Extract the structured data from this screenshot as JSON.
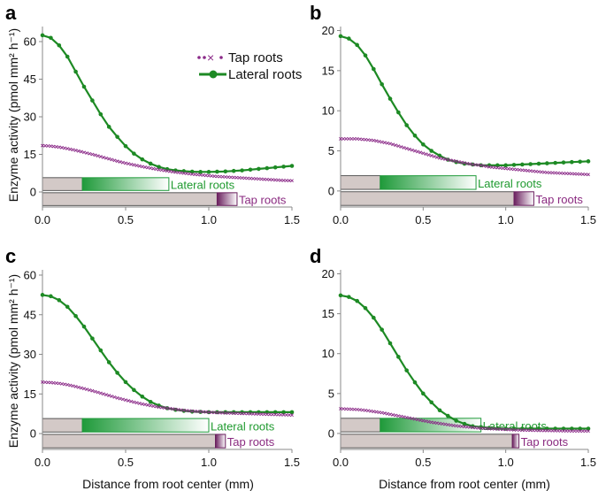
{
  "figure": {
    "ylabel": "Enzyme activity (pmol mm² h⁻¹)",
    "xlabel": "Distance from root center (mm)"
  },
  "legend": {
    "tap_label": "Tap roots",
    "lateral_label": "Lateral roots"
  },
  "colors": {
    "tap": "#8b2a88",
    "lateral": "#1d8a24",
    "gray_bar": "#d3c9c7",
    "lateral_dark": "#1f9a3a",
    "tap_dark": "#6a1f5e"
  },
  "chart_data": [
    {
      "panel": "a",
      "type": "line",
      "x": [
        0,
        0.05,
        0.1,
        0.15,
        0.2,
        0.25,
        0.3,
        0.35,
        0.4,
        0.45,
        0.5,
        0.55,
        0.6,
        0.65,
        0.7,
        0.75,
        0.8,
        0.85,
        0.9,
        0.95,
        1.0,
        1.05,
        1.1,
        1.15,
        1.2,
        1.25,
        1.3,
        1.35,
        1.4,
        1.45,
        1.5
      ],
      "series": [
        {
          "name": "Lateral roots",
          "values": [
            62.5,
            61.5,
            58.5,
            54,
            48,
            42,
            36.5,
            31,
            26,
            22,
            18.3,
            15.3,
            13,
            11.3,
            10,
            9.1,
            8.6,
            8.3,
            8.1,
            8.0,
            8.0,
            8.1,
            8.2,
            8.4,
            8.6,
            8.9,
            9.2,
            9.5,
            9.8,
            10.1,
            10.4
          ]
        },
        {
          "name": "Tap roots",
          "values": [
            18.5,
            18.3,
            17.9,
            17.3,
            16.6,
            15.8,
            15.0,
            14.1,
            13.2,
            12.3,
            11.5,
            10.8,
            10.1,
            9.5,
            8.9,
            8.4,
            7.9,
            7.5,
            7.1,
            6.8,
            6.5,
            6.2,
            6.0,
            5.8,
            5.6,
            5.4,
            5.2,
            5.0,
            4.8,
            4.6,
            4.5
          ]
        }
      ],
      "ylim": [
        -6,
        66
      ],
      "yticks": [
        0,
        15,
        30,
        45,
        60
      ],
      "ytick_labels": [
        "0",
        "15",
        "30",
        "45",
        "60"
      ],
      "xlim": [
        0,
        1.5
      ],
      "xticks": [
        0,
        0.5,
        1,
        1.5
      ],
      "xtick_labels": [
        "0.0",
        "0.5",
        "1.0",
        "1.5"
      ],
      "bars": {
        "lateral_range": [
          0.24,
          0.76
        ],
        "tap_range": [
          1.05,
          1.17
        ],
        "lateral_label": "Lateral roots",
        "tap_label": "Tap roots"
      }
    },
    {
      "panel": "b",
      "type": "line",
      "x": [
        0,
        0.05,
        0.1,
        0.15,
        0.2,
        0.25,
        0.3,
        0.35,
        0.4,
        0.45,
        0.5,
        0.55,
        0.6,
        0.65,
        0.7,
        0.75,
        0.8,
        0.85,
        0.9,
        0.95,
        1.0,
        1.05,
        1.1,
        1.15,
        1.2,
        1.25,
        1.3,
        1.35,
        1.4,
        1.45,
        1.5
      ],
      "series": [
        {
          "name": "Lateral roots",
          "values": [
            19.3,
            19.0,
            18.2,
            16.9,
            15.2,
            13.3,
            11.5,
            9.8,
            8.2,
            6.9,
            5.8,
            5.0,
            4.4,
            3.9,
            3.6,
            3.4,
            3.3,
            3.2,
            3.2,
            3.2,
            3.2,
            3.25,
            3.3,
            3.35,
            3.4,
            3.45,
            3.5,
            3.55,
            3.6,
            3.65,
            3.7
          ]
        },
        {
          "name": "Tap roots",
          "values": [
            6.5,
            6.5,
            6.5,
            6.4,
            6.3,
            6.1,
            5.9,
            5.6,
            5.3,
            5.0,
            4.7,
            4.4,
            4.1,
            3.9,
            3.7,
            3.5,
            3.3,
            3.2,
            3.0,
            2.9,
            2.8,
            2.7,
            2.6,
            2.5,
            2.4,
            2.3,
            2.25,
            2.2,
            2.15,
            2.1,
            2.05
          ]
        }
      ],
      "ylim": [
        -2,
        20.5
      ],
      "yticks": [
        0,
        5,
        10,
        15,
        20
      ],
      "ytick_labels": [
        "0",
        "5",
        "10",
        "15",
        "20"
      ],
      "xlim": [
        0,
        1.5
      ],
      "xticks": [
        0,
        0.5,
        1,
        1.5
      ],
      "xtick_labels": [
        "0.0",
        "0.5",
        "1.0",
        "1.5"
      ],
      "bars": {
        "lateral_range": [
          0.24,
          0.82
        ],
        "tap_range": [
          1.05,
          1.17
        ],
        "lateral_label": "Lateral roots",
        "tap_label": "Tap roots"
      }
    },
    {
      "panel": "c",
      "type": "line",
      "x": [
        0,
        0.05,
        0.1,
        0.15,
        0.2,
        0.25,
        0.3,
        0.35,
        0.4,
        0.45,
        0.5,
        0.55,
        0.6,
        0.65,
        0.7,
        0.75,
        0.8,
        0.85,
        0.9,
        0.95,
        1.0,
        1.05,
        1.1,
        1.15,
        1.2,
        1.25,
        1.3,
        1.35,
        1.4,
        1.45,
        1.5
      ],
      "series": [
        {
          "name": "Lateral roots",
          "values": [
            52.5,
            52.0,
            50.5,
            48,
            44.5,
            40.5,
            36,
            31.5,
            27,
            23,
            19.5,
            16.5,
            14,
            12,
            10.6,
            9.6,
            9.0,
            8.6,
            8.3,
            8.2,
            8.1,
            8.1,
            8.1,
            8.1,
            8.1,
            8.1,
            8.1,
            8.1,
            8.1,
            8.1,
            8.1
          ]
        },
        {
          "name": "Tap roots",
          "values": [
            19.5,
            19.3,
            19.0,
            18.5,
            17.8,
            17.0,
            16.2,
            15.3,
            14.4,
            13.5,
            12.7,
            11.9,
            11.2,
            10.6,
            10.0,
            9.6,
            9.2,
            8.8,
            8.5,
            8.3,
            8.1,
            7.9,
            7.8,
            7.7,
            7.6,
            7.5,
            7.4,
            7.3,
            7.2,
            7.1,
            7.0
          ]
        }
      ],
      "ylim": [
        -6,
        62
      ],
      "yticks": [
        0,
        15,
        30,
        45,
        60
      ],
      "ytick_labels": [
        "0",
        "15",
        "30",
        "45",
        "60"
      ],
      "xlim": [
        0,
        1.5
      ],
      "xticks": [
        0,
        0.5,
        1,
        1.5
      ],
      "xtick_labels": [
        "0.0",
        "0.5",
        "1.0",
        "1.5"
      ],
      "bars": {
        "lateral_range": [
          0.24,
          1.0
        ],
        "tap_range": [
          1.04,
          1.1
        ],
        "lateral_label": "Lateral roots",
        "tap_label": "Tap roots"
      }
    },
    {
      "panel": "d",
      "type": "line",
      "x": [
        0,
        0.05,
        0.1,
        0.15,
        0.2,
        0.25,
        0.3,
        0.35,
        0.4,
        0.45,
        0.5,
        0.55,
        0.6,
        0.65,
        0.7,
        0.75,
        0.8,
        0.85,
        0.9,
        0.95,
        1.0,
        1.05,
        1.1,
        1.15,
        1.2,
        1.25,
        1.3,
        1.35,
        1.4,
        1.45,
        1.5
      ],
      "series": [
        {
          "name": "Lateral roots",
          "values": [
            17.3,
            17.1,
            16.6,
            15.7,
            14.5,
            13.0,
            11.3,
            9.6,
            7.9,
            6.4,
            5.0,
            3.9,
            2.9,
            2.2,
            1.6,
            1.2,
            0.9,
            0.8,
            0.7,
            0.65,
            0.6,
            0.6,
            0.6,
            0.6,
            0.6,
            0.6,
            0.6,
            0.6,
            0.6,
            0.6,
            0.6
          ]
        },
        {
          "name": "Tap roots",
          "values": [
            3.1,
            3.05,
            3.0,
            2.9,
            2.75,
            2.6,
            2.4,
            2.2,
            2.0,
            1.8,
            1.6,
            1.4,
            1.25,
            1.1,
            0.95,
            0.85,
            0.75,
            0.65,
            0.6,
            0.55,
            0.5,
            0.45,
            0.42,
            0.4,
            0.38,
            0.36,
            0.34,
            0.32,
            0.31,
            0.3,
            0.3
          ]
        }
      ],
      "ylim": [
        -2,
        20.5
      ],
      "yticks": [
        0,
        5,
        10,
        15,
        20
      ],
      "ytick_labels": [
        "0",
        "5",
        "10",
        "15",
        "20"
      ],
      "xlim": [
        0,
        1.5
      ],
      "xticks": [
        0,
        0.5,
        1,
        1.5
      ],
      "xtick_labels": [
        "0.0",
        "0.5",
        "1.0",
        "1.5"
      ],
      "bars": {
        "lateral_range": [
          0.24,
          0.85
        ],
        "tap_range": [
          1.04,
          1.08
        ],
        "lateral_label": "Lateral roots",
        "tap_label": "Tap roots"
      }
    }
  ]
}
